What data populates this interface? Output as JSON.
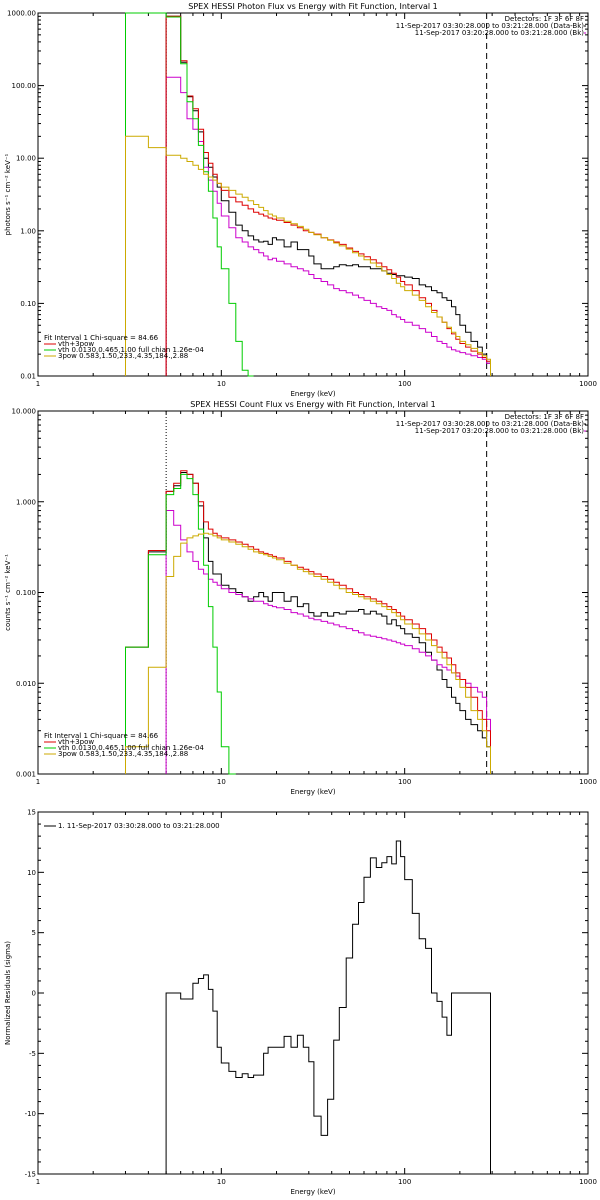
{
  "chart_data": [
    {
      "type": "line",
      "title": "SPEX HESSI Photon Flux vs Energy with Fit Function, Interval 1",
      "xlabel": "Energy (keV)",
      "ylabel": "photons s⁻¹ cm⁻² keV⁻¹",
      "xscale": "log",
      "yscale": "log",
      "xlim": [
        1,
        1000
      ],
      "ylim": [
        0.01,
        1000
      ],
      "xticks": [
        "1",
        "10",
        "100",
        "1000"
      ],
      "yticks": [
        "0.01",
        "0.10",
        "1.00",
        "10.00",
        "100.00",
        "1000.00"
      ],
      "vlines": [
        {
          "x": 5.0,
          "style": "dotted"
        },
        {
          "x": 280,
          "style": "dashed"
        }
      ],
      "header_text": [
        "Detectors: 1F 3F 6F 8F",
        "11-Sep-2017 03:30:28.000 to 03:21:28.000 (Data-Bk)",
        "11-Sep-2017 03:20:28.000 to 03:21:28.000 (Bk)"
      ],
      "header_colors": [
        "",
        "#000000",
        "#cc00cc"
      ],
      "legend_text": [
        "Fit Interval 1    Chi-square = 84.66",
        "vth+3pow",
        "vth 0.0130,0.465,1.00  full chian 1.26e-04",
        "3pow 0.583,1.50,233.,4.35,184.,2.88"
      ],
      "legend_colors": [
        "",
        "#dd0000",
        "#00cc00",
        "#ccaa00"
      ],
      "x": [
        3,
        4,
        5,
        6,
        6.5,
        7,
        7.5,
        8,
        8.5,
        9,
        9.5,
        10,
        11,
        12,
        13,
        14,
        15,
        16,
        17,
        18,
        19,
        20,
        22,
        24,
        26,
        28,
        30,
        32,
        35,
        38,
        41,
        44,
        48,
        52,
        56,
        60,
        65,
        70,
        75,
        80,
        85,
        90,
        95,
        100,
        110,
        120,
        130,
        140,
        150,
        160,
        170,
        180,
        190,
        200,
        215,
        230,
        250,
        265,
        280
      ],
      "series": [
        {
          "name": "Data-Bk",
          "color": "#000000",
          "values": [
            null,
            null,
            900,
            210,
            70,
            45,
            23,
            10,
            7.5,
            5.5,
            4.0,
            2.6,
            1.8,
            1.2,
            1.0,
            0.85,
            0.75,
            0.7,
            0.72,
            0.65,
            0.8,
            0.75,
            0.6,
            0.7,
            0.55,
            0.55,
            0.45,
            0.35,
            0.3,
            0.3,
            0.32,
            0.34,
            0.33,
            0.34,
            0.32,
            0.32,
            0.3,
            0.3,
            0.28,
            0.26,
            0.25,
            0.24,
            0.24,
            0.23,
            0.22,
            0.18,
            0.17,
            0.15,
            0.14,
            0.12,
            0.11,
            0.09,
            0.07,
            0.05,
            0.04,
            0.03,
            0.025,
            0.02,
            0.015
          ]
        },
        {
          "name": "Bk",
          "color": "#cc00cc",
          "values": [
            null,
            null,
            130,
            80,
            35,
            25,
            17,
            7.5,
            5.0,
            3.5,
            2.4,
            1.6,
            1.1,
            0.8,
            0.7,
            0.6,
            0.55,
            0.5,
            0.45,
            0.4,
            0.42,
            0.38,
            0.35,
            0.32,
            0.3,
            0.28,
            0.25,
            0.22,
            0.2,
            0.18,
            0.16,
            0.15,
            0.14,
            0.13,
            0.12,
            0.11,
            0.1,
            0.09,
            0.085,
            0.08,
            0.07,
            0.065,
            0.06,
            0.055,
            0.05,
            0.045,
            0.04,
            0.035,
            0.03,
            0.028,
            0.025,
            0.023,
            0.022,
            0.021,
            0.02,
            0.019,
            0.018,
            0.017,
            0.015
          ]
        },
        {
          "name": "vth+3pow",
          "color": "#dd0000",
          "values": [
            null,
            null,
            900,
            220,
            72,
            48,
            25,
            12,
            8.5,
            6.0,
            4.5,
            3.6,
            2.9,
            2.5,
            2.25,
            2.0,
            1.8,
            1.7,
            1.6,
            1.5,
            1.45,
            1.4,
            1.3,
            1.2,
            1.1,
            1.0,
            0.95,
            0.9,
            0.8,
            0.75,
            0.7,
            0.65,
            0.58,
            0.52,
            0.48,
            0.44,
            0.4,
            0.36,
            0.32,
            0.29,
            0.26,
            0.23,
            0.2,
            0.18,
            0.15,
            0.12,
            0.1,
            0.08,
            0.065,
            0.055,
            0.045,
            0.038,
            0.032,
            0.028,
            0.025,
            0.022,
            0.02,
            0.018,
            0.016
          ]
        },
        {
          "name": "vth",
          "color": "#00cc00",
          "values": [
            1000,
            1000,
            880,
            200,
            60,
            35,
            15,
            6.5,
            3.5,
            1.5,
            0.6,
            0.3,
            0.1,
            0.03,
            0.012,
            0.005,
            null,
            null,
            null,
            null,
            null,
            null,
            null,
            null,
            null,
            null,
            null,
            null,
            null,
            null,
            null,
            null,
            null,
            null,
            null,
            null,
            null,
            null,
            null,
            null,
            null,
            null,
            null,
            null,
            null,
            null,
            null,
            null,
            null,
            null,
            null,
            null,
            null,
            null,
            null,
            null,
            null,
            null,
            null
          ]
        },
        {
          "name": "3pow",
          "color": "#ccaa00",
          "values": [
            20,
            14,
            11,
            10,
            9.0,
            8.0,
            7.0,
            6.0,
            5.5,
            5.0,
            4.5,
            4.0,
            3.6,
            3.2,
            2.9,
            2.6,
            2.3,
            2.1,
            1.9,
            1.7,
            1.6,
            1.5,
            1.35,
            1.25,
            1.15,
            1.05,
            0.95,
            0.88,
            0.8,
            0.74,
            0.68,
            0.62,
            0.56,
            0.5,
            0.45,
            0.4,
            0.36,
            0.32,
            0.28,
            0.25,
            0.22,
            0.19,
            0.17,
            0.15,
            0.13,
            0.11,
            0.09,
            0.075,
            0.065,
            0.055,
            0.047,
            0.04,
            0.035,
            0.03,
            0.027,
            0.024,
            0.021,
            0.019,
            0.017
          ]
        }
      ]
    },
    {
      "type": "line",
      "title": "SPEX HESSI Count Flux vs Energy with Fit Function, Interval 1",
      "xlabel": "Energy (keV)",
      "ylabel": "counts s⁻¹ cm⁻² keV⁻¹",
      "xscale": "log",
      "yscale": "log",
      "xlim": [
        1,
        1000
      ],
      "ylim": [
        0.001,
        10
      ],
      "xticks": [
        "1",
        "10",
        "100",
        "1000"
      ],
      "yticks": [
        "0.001",
        "0.010",
        "0.100",
        "1.000",
        "10.000"
      ],
      "vlines": [
        {
          "x": 5.0,
          "style": "dotted"
        },
        {
          "x": 280,
          "style": "dashed"
        }
      ],
      "header_text": [
        "Detectors: 1F 3F 6F 8F",
        "11-Sep-2017 03:30:28.000 to 03:21:28.000 (Data-Bk)",
        "11-Sep-2017 03:20:28.000 to 03:21:28.000 (Bk)"
      ],
      "header_colors": [
        "",
        "#000000",
        "#cc00cc"
      ],
      "legend_text": [
        "Fit Interval 1    Chi-square = 84.66",
        "vth+3pow",
        "vth 0.0130,0.465,1.00  full chian 1.26e-04",
        "3pow 0.583,1.50,233.,4.35,184.,2.88"
      ],
      "legend_colors": [
        "",
        "#dd0000",
        "#00cc00",
        "#ccaa00"
      ],
      "x": [
        3,
        3.5,
        4,
        4.5,
        5,
        5.5,
        6,
        6.5,
        7,
        7.5,
        8,
        8.5,
        9,
        9.5,
        10,
        11,
        12,
        13,
        14,
        15,
        16,
        17,
        18,
        19,
        20,
        22,
        24,
        26,
        28,
        30,
        32,
        35,
        38,
        41,
        44,
        48,
        52,
        56,
        60,
        65,
        70,
        75,
        80,
        85,
        90,
        95,
        100,
        110,
        120,
        130,
        140,
        150,
        160,
        170,
        180,
        190,
        200,
        215,
        230,
        250,
        265,
        280
      ],
      "series": [
        {
          "name": "Data-Bk",
          "color": "#000000",
          "values": [
            0.025,
            0.025,
            0.28,
            0.28,
            1.3,
            1.5,
            2.1,
            2.0,
            1.6,
            0.9,
            0.4,
            0.22,
            0.16,
            0.16,
            0.12,
            0.11,
            0.1,
            0.09,
            0.08,
            0.09,
            0.1,
            0.09,
            0.08,
            0.1,
            0.1,
            0.08,
            0.09,
            0.07,
            0.075,
            0.06,
            0.055,
            0.06,
            0.055,
            0.06,
            0.058,
            0.062,
            0.062,
            0.065,
            0.058,
            0.062,
            0.058,
            0.055,
            0.045,
            0.05,
            0.043,
            0.04,
            0.035,
            0.032,
            0.028,
            0.022,
            0.018,
            0.014,
            0.011,
            0.009,
            0.007,
            0.006,
            0.005,
            0.004,
            0.0035,
            0.003,
            0.0025,
            0.002
          ]
        },
        {
          "name": "Bk",
          "color": "#cc00cc",
          "values": [
            null,
            null,
            null,
            null,
            0.8,
            0.55,
            0.38,
            0.28,
            0.22,
            0.18,
            0.16,
            0.14,
            0.13,
            0.12,
            0.11,
            0.1,
            0.095,
            0.09,
            0.085,
            0.08,
            0.08,
            0.075,
            0.072,
            0.07,
            0.068,
            0.065,
            0.06,
            0.058,
            0.055,
            0.052,
            0.05,
            0.048,
            0.046,
            0.044,
            0.042,
            0.04,
            0.038,
            0.036,
            0.034,
            0.033,
            0.032,
            0.031,
            0.03,
            0.029,
            0.028,
            0.027,
            0.026,
            0.024,
            0.022,
            0.02,
            0.018,
            0.016,
            0.015,
            0.014,
            0.013,
            0.012,
            0.011,
            0.01,
            0.009,
            0.008,
            0.007,
            0.004
          ]
        },
        {
          "name": "vth+3pow",
          "color": "#dd0000",
          "values": [
            0.025,
            0.025,
            0.29,
            0.29,
            1.3,
            1.6,
            2.2,
            2.0,
            1.6,
            1.0,
            0.6,
            0.5,
            0.45,
            0.42,
            0.4,
            0.38,
            0.36,
            0.34,
            0.32,
            0.3,
            0.28,
            0.27,
            0.26,
            0.25,
            0.24,
            0.22,
            0.2,
            0.19,
            0.18,
            0.17,
            0.16,
            0.15,
            0.14,
            0.13,
            0.12,
            0.11,
            0.1,
            0.095,
            0.09,
            0.085,
            0.08,
            0.075,
            0.07,
            0.065,
            0.06,
            0.055,
            0.05,
            0.045,
            0.04,
            0.035,
            0.03,
            0.025,
            0.022,
            0.019,
            0.016,
            0.013,
            0.011,
            0.009,
            0.007,
            0.005,
            0.004,
            0.003
          ]
        },
        {
          "name": "vth",
          "color": "#00cc00",
          "values": [
            0.025,
            0.025,
            0.26,
            0.26,
            1.2,
            1.4,
            2.0,
            1.8,
            1.2,
            0.5,
            0.2,
            0.07,
            0.025,
            0.008,
            0.002,
            0.001,
            null,
            null,
            null,
            null,
            null,
            null,
            null,
            null,
            null,
            null,
            null,
            null,
            null,
            null,
            null,
            null,
            null,
            null,
            null,
            null,
            null,
            null,
            null,
            null,
            null,
            null,
            null,
            null,
            null,
            null,
            null,
            null,
            null,
            null,
            null,
            null,
            null,
            null,
            null,
            null,
            null,
            null,
            null,
            null,
            null,
            null
          ]
        },
        {
          "name": "3pow",
          "color": "#ccaa00",
          "values": [
            0.002,
            0.002,
            0.015,
            0.015,
            0.15,
            0.25,
            0.35,
            0.4,
            0.42,
            0.44,
            0.45,
            0.44,
            0.42,
            0.4,
            0.38,
            0.36,
            0.34,
            0.32,
            0.3,
            0.28,
            0.27,
            0.26,
            0.25,
            0.24,
            0.23,
            0.21,
            0.2,
            0.18,
            0.17,
            0.16,
            0.15,
            0.14,
            0.13,
            0.12,
            0.11,
            0.1,
            0.095,
            0.09,
            0.085,
            0.08,
            0.075,
            0.07,
            0.065,
            0.06,
            0.055,
            0.05,
            0.045,
            0.04,
            0.035,
            0.03,
            0.026,
            0.022,
            0.019,
            0.016,
            0.013,
            0.011,
            0.009,
            0.007,
            0.005,
            0.004,
            0.003,
            0.002
          ]
        }
      ]
    },
    {
      "type": "line",
      "title": "",
      "xlabel": "Energy (keV)",
      "ylabel": "Normalized Residuals (sigma)",
      "xscale": "log",
      "yscale": "linear",
      "xlim": [
        1,
        1000
      ],
      "ylim": [
        -15,
        15
      ],
      "xticks": [
        "1",
        "10",
        "100",
        "1000"
      ],
      "yticks": [
        "-15",
        "-10",
        "-5",
        "0",
        "5",
        "10",
        "15"
      ],
      "legend_text": [
        "1. 11-Sep-2017 03:30:28.000 to 03:21:28.000"
      ],
      "legend_colors": [
        "#000000"
      ],
      "x": [
        5,
        6,
        7,
        7.5,
        8,
        8.5,
        9,
        9.5,
        10,
        11,
        12,
        13,
        14,
        15,
        16,
        17,
        18,
        20,
        22,
        24,
        26,
        28,
        30,
        32,
        35,
        38,
        41,
        44,
        48,
        52,
        56,
        60,
        65,
        70,
        75,
        80,
        85,
        90,
        95,
        100,
        110,
        120,
        130,
        140,
        150,
        160,
        170,
        180,
        190,
        200,
        215,
        230,
        250,
        265,
        280
      ],
      "series": [
        {
          "name": "residuals",
          "color": "#000000",
          "values": [
            0,
            -0.5,
            0.8,
            1.2,
            1.5,
            0.3,
            -1.5,
            -4.5,
            -5.8,
            -6.5,
            -7,
            -6.7,
            -7,
            -6.8,
            -6.8,
            -5.0,
            -4.5,
            -4.5,
            -3.6,
            -4.5,
            -3.5,
            -4.5,
            -5.7,
            -10.2,
            -11.8,
            -8.8,
            -3.9,
            -1.2,
            2.9,
            5.7,
            7.5,
            9.6,
            11.2,
            10.4,
            10.8,
            11.3,
            10.7,
            12.6,
            11.3,
            9.4,
            6.6,
            4.5,
            3.7,
            0.0,
            -0.7,
            -2.0,
            -3.5,
            0,
            0,
            0,
            0,
            0,
            0,
            0,
            0
          ]
        }
      ]
    }
  ]
}
